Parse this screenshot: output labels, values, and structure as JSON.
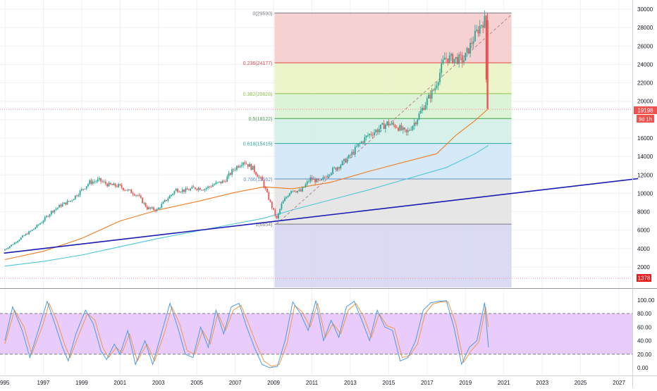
{
  "chart_data": {
    "type": "candlestick",
    "x_axis": {
      "tick_labels": [
        "995",
        "1997",
        "1999",
        "2001",
        "2003",
        "2005",
        "2007",
        "2009",
        "2011",
        "2013",
        "2015",
        "2017",
        "2019",
        "2021",
        "2023",
        "2025",
        "2027"
      ]
    },
    "price_axis": {
      "ylim": [
        1378,
        29590
      ],
      "tick_values": [
        2000,
        4000,
        6000,
        8000,
        10000,
        12000,
        14000,
        16000,
        18000,
        20000,
        22000,
        24000,
        26000,
        28000,
        30000
      ],
      "tick_labels": [
        "2000",
        "4000",
        "6000",
        "8000",
        "10000",
        "12000",
        "14000",
        "16000",
        "18000",
        "20000",
        "22000",
        "24000",
        "26000",
        "28000",
        "30000"
      ],
      "last_price_label": "19198",
      "countdown_label": "9d 1h",
      "low_level_label": "1378"
    },
    "fibonacci": {
      "start_time": 2009.05,
      "end_time": 2021.4,
      "levels": [
        {
          "label": "0(29590)",
          "value": 29590,
          "color": "#787b86",
          "fill": "#f4cccc"
        },
        {
          "label": "0.236(24177)",
          "value": 24177,
          "color": "#e04545",
          "fill": "#eaf4c4"
        },
        {
          "label": "0.382(20828)",
          "value": 20828,
          "color": "#8bc34a",
          "fill": "#d9f2d3"
        },
        {
          "label": "0.5(18122)",
          "value": 18122,
          "color": "#43a047",
          "fill": "#d3f0e8"
        },
        {
          "label": "0.618(15415)",
          "value": 15415,
          "color": "#26a69a",
          "fill": "#d2e7f7"
        },
        {
          "label": "0.786(11562)",
          "value": 11562,
          "color": "#5b8fc9",
          "fill": "#e3e3e3"
        },
        {
          "label": "1(6654)",
          "value": 6654,
          "color": "#7a7a7a",
          "fill": "#d6d6f4"
        }
      ],
      "extension_bottom_value": 1378
    },
    "prices": [
      {
        "t": 1995.0,
        "v": 3800
      },
      {
        "t": 1995.5,
        "v": 4500
      },
      {
        "t": 1996.0,
        "v": 5300
      },
      {
        "t": 1996.5,
        "v": 6000
      },
      {
        "t": 1997.0,
        "v": 6900
      },
      {
        "t": 1997.5,
        "v": 8000
      },
      {
        "t": 1998.0,
        "v": 8700
      },
      {
        "t": 1998.5,
        "v": 9200
      },
      {
        "t": 1999.0,
        "v": 10200
      },
      {
        "t": 1999.5,
        "v": 11200
      },
      {
        "t": 2000.0,
        "v": 11400
      },
      {
        "t": 2000.5,
        "v": 10900
      },
      {
        "t": 2001.0,
        "v": 10800
      },
      {
        "t": 2001.5,
        "v": 10300
      },
      {
        "t": 2002.0,
        "v": 9800
      },
      {
        "t": 2002.5,
        "v": 8400
      },
      {
        "t": 2003.0,
        "v": 8200
      },
      {
        "t": 2003.5,
        "v": 9300
      },
      {
        "t": 2004.0,
        "v": 10400
      },
      {
        "t": 2004.5,
        "v": 10300
      },
      {
        "t": 2005.0,
        "v": 10600
      },
      {
        "t": 2005.5,
        "v": 10500
      },
      {
        "t": 2006.0,
        "v": 11000
      },
      {
        "t": 2006.5,
        "v": 11300
      },
      {
        "t": 2007.0,
        "v": 12600
      },
      {
        "t": 2007.5,
        "v": 13500
      },
      {
        "t": 2008.0,
        "v": 12700
      },
      {
        "t": 2008.5,
        "v": 11300
      },
      {
        "t": 2009.0,
        "v": 8500
      },
      {
        "t": 2009.25,
        "v": 7200
      },
      {
        "t": 2009.5,
        "v": 8800
      },
      {
        "t": 2010.0,
        "v": 10400
      },
      {
        "t": 2010.5,
        "v": 10200
      },
      {
        "t": 2011.0,
        "v": 11600
      },
      {
        "t": 2011.5,
        "v": 11200
      },
      {
        "t": 2012.0,
        "v": 12300
      },
      {
        "t": 2012.5,
        "v": 13000
      },
      {
        "t": 2013.0,
        "v": 13900
      },
      {
        "t": 2013.5,
        "v": 15200
      },
      {
        "t": 2014.0,
        "v": 16300
      },
      {
        "t": 2014.5,
        "v": 16900
      },
      {
        "t": 2015.0,
        "v": 17600
      },
      {
        "t": 2015.5,
        "v": 17300
      },
      {
        "t": 2016.0,
        "v": 16500
      },
      {
        "t": 2016.5,
        "v": 17900
      },
      {
        "t": 2017.0,
        "v": 19800
      },
      {
        "t": 2017.5,
        "v": 21500
      },
      {
        "t": 2018.0,
        "v": 24700
      },
      {
        "t": 2018.5,
        "v": 24600
      },
      {
        "t": 2019.0,
        "v": 24500
      },
      {
        "t": 2019.5,
        "v": 26800
      },
      {
        "t": 2019.9,
        "v": 28400
      },
      {
        "t": 2020.1,
        "v": 28800
      },
      {
        "t": 2020.2,
        "v": 19198
      }
    ],
    "ma_orange": [
      {
        "t": 1995.0,
        "v": 2800
      },
      {
        "t": 1997.0,
        "v": 3700
      },
      {
        "t": 1999.0,
        "v": 5100
      },
      {
        "t": 2001.0,
        "v": 7000
      },
      {
        "t": 2003.0,
        "v": 8200
      },
      {
        "t": 2005.0,
        "v": 9100
      },
      {
        "t": 2007.0,
        "v": 10100
      },
      {
        "t": 2008.5,
        "v": 10700
      },
      {
        "t": 2010.0,
        "v": 10500
      },
      {
        "t": 2012.0,
        "v": 11200
      },
      {
        "t": 2014.0,
        "v": 12400
      },
      {
        "t": 2016.0,
        "v": 13500
      },
      {
        "t": 2017.5,
        "v": 14300
      },
      {
        "t": 2018.5,
        "v": 16300
      },
      {
        "t": 2019.5,
        "v": 17900
      },
      {
        "t": 2020.2,
        "v": 19200
      }
    ],
    "ma_teal": [
      {
        "t": 1995.0,
        "v": 2100
      },
      {
        "t": 1997.0,
        "v": 2600
      },
      {
        "t": 1999.0,
        "v": 3300
      },
      {
        "t": 2001.0,
        "v": 4200
      },
      {
        "t": 2003.0,
        "v": 5100
      },
      {
        "t": 2005.0,
        "v": 5900
      },
      {
        "t": 2007.0,
        "v": 6700
      },
      {
        "t": 2008.5,
        "v": 7300
      },
      {
        "t": 2010.0,
        "v": 8200
      },
      {
        "t": 2012.0,
        "v": 9300
      },
      {
        "t": 2014.0,
        "v": 10400
      },
      {
        "t": 2016.0,
        "v": 11600
      },
      {
        "t": 2018.0,
        "v": 12800
      },
      {
        "t": 2019.5,
        "v": 14300
      },
      {
        "t": 2020.2,
        "v": 15200
      }
    ],
    "trendline": {
      "color": "#1a1ab5",
      "points": [
        {
          "t": 1994.95,
          "v": 3500
        },
        {
          "t": 2028.0,
          "v": 11600
        }
      ]
    },
    "dashed_diagonal": {
      "color": "#b5838b",
      "points": [
        {
          "t": 2009.15,
          "v": 6654
        },
        {
          "t": 2021.4,
          "v": 29400
        }
      ]
    },
    "oscillator": {
      "ylim": [
        -5,
        110
      ],
      "tick_values": [
        0,
        20,
        40,
        60,
        80,
        100
      ],
      "tick_labels": [
        "0.00",
        "20.00",
        "40.00",
        "60.00",
        "80.00",
        "100.00"
      ],
      "band_upper": 80,
      "band_lower": 20,
      "band_fill": "#e9ccfb",
      "k_color": "#4a9be6",
      "d_color": "#f59542",
      "k": [
        {
          "t": 1995.0,
          "v": 40
        },
        {
          "t": 1995.4,
          "v": 90
        },
        {
          "t": 1995.9,
          "v": 55
        },
        {
          "t": 1996.3,
          "v": 15
        },
        {
          "t": 1996.9,
          "v": 70
        },
        {
          "t": 1997.2,
          "v": 98
        },
        {
          "t": 1997.6,
          "v": 65
        },
        {
          "t": 1998.0,
          "v": 30
        },
        {
          "t": 1998.3,
          "v": 10
        },
        {
          "t": 1998.7,
          "v": 50
        },
        {
          "t": 1999.2,
          "v": 85
        },
        {
          "t": 1999.6,
          "v": 65
        },
        {
          "t": 2000.0,
          "v": 25
        },
        {
          "t": 2000.3,
          "v": 12
        },
        {
          "t": 2000.7,
          "v": 35
        },
        {
          "t": 2001.0,
          "v": 20
        },
        {
          "t": 2001.4,
          "v": 55
        },
        {
          "t": 2001.8,
          "v": 5
        },
        {
          "t": 2002.3,
          "v": 40
        },
        {
          "t": 2002.7,
          "v": 5
        },
        {
          "t": 2003.2,
          "v": 55
        },
        {
          "t": 2003.6,
          "v": 95
        },
        {
          "t": 2004.0,
          "v": 60
        },
        {
          "t": 2004.4,
          "v": 20
        },
        {
          "t": 2004.8,
          "v": 15
        },
        {
          "t": 2005.2,
          "v": 60
        },
        {
          "t": 2005.6,
          "v": 30
        },
        {
          "t": 2006.0,
          "v": 85
        },
        {
          "t": 2006.4,
          "v": 50
        },
        {
          "t": 2006.8,
          "v": 90
        },
        {
          "t": 2007.2,
          "v": 95
        },
        {
          "t": 2007.6,
          "v": 60
        },
        {
          "t": 2008.0,
          "v": 30
        },
        {
          "t": 2008.4,
          "v": 5
        },
        {
          "t": 2008.8,
          "v": 0
        },
        {
          "t": 2009.2,
          "v": 2
        },
        {
          "t": 2009.6,
          "v": 40
        },
        {
          "t": 2010.0,
          "v": 97
        },
        {
          "t": 2010.4,
          "v": 80
        },
        {
          "t": 2010.8,
          "v": 55
        },
        {
          "t": 2011.2,
          "v": 99
        },
        {
          "t": 2011.6,
          "v": 40
        },
        {
          "t": 2012.0,
          "v": 70
        },
        {
          "t": 2012.4,
          "v": 45
        },
        {
          "t": 2012.8,
          "v": 90
        },
        {
          "t": 2013.2,
          "v": 98
        },
        {
          "t": 2013.6,
          "v": 70
        },
        {
          "t": 2014.0,
          "v": 40
        },
        {
          "t": 2014.4,
          "v": 85
        },
        {
          "t": 2014.8,
          "v": 60
        },
        {
          "t": 2015.2,
          "v": 55
        },
        {
          "t": 2015.6,
          "v": 10
        },
        {
          "t": 2016.0,
          "v": 15
        },
        {
          "t": 2016.4,
          "v": 40
        },
        {
          "t": 2016.8,
          "v": 85
        },
        {
          "t": 2017.2,
          "v": 96
        },
        {
          "t": 2017.6,
          "v": 98
        },
        {
          "t": 2018.0,
          "v": 99
        },
        {
          "t": 2018.4,
          "v": 60
        },
        {
          "t": 2018.8,
          "v": 5
        },
        {
          "t": 2019.2,
          "v": 30
        },
        {
          "t": 2019.6,
          "v": 40
        },
        {
          "t": 2020.0,
          "v": 96
        },
        {
          "t": 2020.2,
          "v": 30
        }
      ],
      "d": [
        {
          "t": 1995.0,
          "v": 35
        },
        {
          "t": 1995.5,
          "v": 85
        },
        {
          "t": 1996.0,
          "v": 60
        },
        {
          "t": 1996.4,
          "v": 20
        },
        {
          "t": 1997.0,
          "v": 65
        },
        {
          "t": 1997.3,
          "v": 95
        },
        {
          "t": 1997.7,
          "v": 70
        },
        {
          "t": 1998.1,
          "v": 35
        },
        {
          "t": 1998.4,
          "v": 15
        },
        {
          "t": 1998.8,
          "v": 45
        },
        {
          "t": 1999.3,
          "v": 80
        },
        {
          "t": 1999.7,
          "v": 70
        },
        {
          "t": 2000.1,
          "v": 30
        },
        {
          "t": 2000.4,
          "v": 15
        },
        {
          "t": 2000.8,
          "v": 30
        },
        {
          "t": 2001.1,
          "v": 22
        },
        {
          "t": 2001.5,
          "v": 50
        },
        {
          "t": 2001.9,
          "v": 10
        },
        {
          "t": 2002.4,
          "v": 35
        },
        {
          "t": 2002.8,
          "v": 10
        },
        {
          "t": 2003.3,
          "v": 50
        },
        {
          "t": 2003.7,
          "v": 90
        },
        {
          "t": 2004.1,
          "v": 65
        },
        {
          "t": 2004.5,
          "v": 25
        },
        {
          "t": 2004.9,
          "v": 20
        },
        {
          "t": 2005.3,
          "v": 55
        },
        {
          "t": 2005.7,
          "v": 35
        },
        {
          "t": 2006.1,
          "v": 80
        },
        {
          "t": 2006.5,
          "v": 55
        },
        {
          "t": 2006.9,
          "v": 85
        },
        {
          "t": 2007.3,
          "v": 92
        },
        {
          "t": 2007.7,
          "v": 65
        },
        {
          "t": 2008.1,
          "v": 35
        },
        {
          "t": 2008.5,
          "v": 10
        },
        {
          "t": 2008.9,
          "v": 2
        },
        {
          "t": 2009.3,
          "v": 5
        },
        {
          "t": 2009.7,
          "v": 35
        },
        {
          "t": 2010.1,
          "v": 92
        },
        {
          "t": 2010.5,
          "v": 82
        },
        {
          "t": 2010.9,
          "v": 60
        },
        {
          "t": 2011.3,
          "v": 95
        },
        {
          "t": 2011.7,
          "v": 45
        },
        {
          "t": 2012.1,
          "v": 65
        },
        {
          "t": 2012.5,
          "v": 50
        },
        {
          "t": 2012.9,
          "v": 85
        },
        {
          "t": 2013.3,
          "v": 95
        },
        {
          "t": 2013.7,
          "v": 75
        },
        {
          "t": 2014.1,
          "v": 45
        },
        {
          "t": 2014.5,
          "v": 80
        },
        {
          "t": 2014.9,
          "v": 62
        },
        {
          "t": 2015.3,
          "v": 58
        },
        {
          "t": 2015.7,
          "v": 15
        },
        {
          "t": 2016.1,
          "v": 18
        },
        {
          "t": 2016.5,
          "v": 35
        },
        {
          "t": 2016.9,
          "v": 80
        },
        {
          "t": 2017.3,
          "v": 94
        },
        {
          "t": 2017.7,
          "v": 97
        },
        {
          "t": 2018.1,
          "v": 97
        },
        {
          "t": 2018.5,
          "v": 65
        },
        {
          "t": 2018.9,
          "v": 8
        },
        {
          "t": 2019.3,
          "v": 25
        },
        {
          "t": 2019.7,
          "v": 38
        },
        {
          "t": 2020.05,
          "v": 90
        },
        {
          "t": 2020.2,
          "v": 60
        }
      ]
    }
  }
}
